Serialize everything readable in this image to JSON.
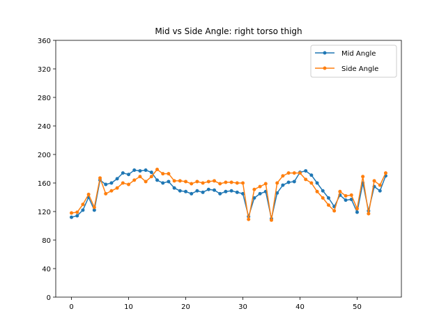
{
  "chart_data": {
    "type": "line",
    "title": "Mid vs Side Angle: right torso thigh",
    "xlabel": "",
    "ylabel": "",
    "xlim": [
      -2.75,
      57.75
    ],
    "ylim": [
      0,
      360
    ],
    "xticks": [
      0,
      10,
      20,
      30,
      40,
      50
    ],
    "yticks": [
      0,
      40,
      80,
      120,
      160,
      200,
      240,
      280,
      320,
      360
    ],
    "grid": false,
    "legend_position": "top-right",
    "x": [
      0,
      1,
      2,
      3,
      4,
      5,
      6,
      7,
      8,
      9,
      10,
      11,
      12,
      13,
      14,
      15,
      16,
      17,
      18,
      19,
      20,
      21,
      22,
      23,
      24,
      25,
      26,
      27,
      28,
      29,
      30,
      31,
      32,
      33,
      34,
      35,
      36,
      37,
      38,
      39,
      40,
      41,
      42,
      43,
      44,
      45,
      46,
      47,
      48,
      49,
      50,
      51,
      52,
      53,
      54,
      55
    ],
    "series": [
      {
        "name": "Mid Angle",
        "color": "#1f77b4",
        "values": [
          112,
          114,
          122,
          140,
          122,
          164,
          158,
          160,
          166,
          174,
          172,
          178,
          177,
          178,
          175,
          164,
          160,
          162,
          153,
          149,
          148,
          145,
          149,
          147,
          151,
          150,
          145,
          148,
          149,
          147,
          145,
          113,
          139,
          145,
          148,
          110,
          146,
          157,
          161,
          162,
          175,
          177,
          171,
          160,
          149,
          139,
          127,
          143,
          136,
          137,
          119,
          160,
          121,
          155,
          149,
          170
        ]
      },
      {
        "name": "Side Angle",
        "color": "#ff7f0e",
        "values": [
          118,
          119,
          130,
          144,
          126,
          167,
          145,
          149,
          153,
          160,
          158,
          164,
          169,
          162,
          169,
          179,
          173,
          173,
          163,
          163,
          162,
          159,
          162,
          160,
          162,
          163,
          159,
          161,
          161,
          160,
          160,
          109,
          151,
          155,
          159,
          108,
          160,
          170,
          174,
          174,
          174,
          165,
          160,
          148,
          139,
          129,
          121,
          148,
          142,
          143,
          124,
          169,
          117,
          163,
          157,
          174
        ]
      }
    ]
  }
}
